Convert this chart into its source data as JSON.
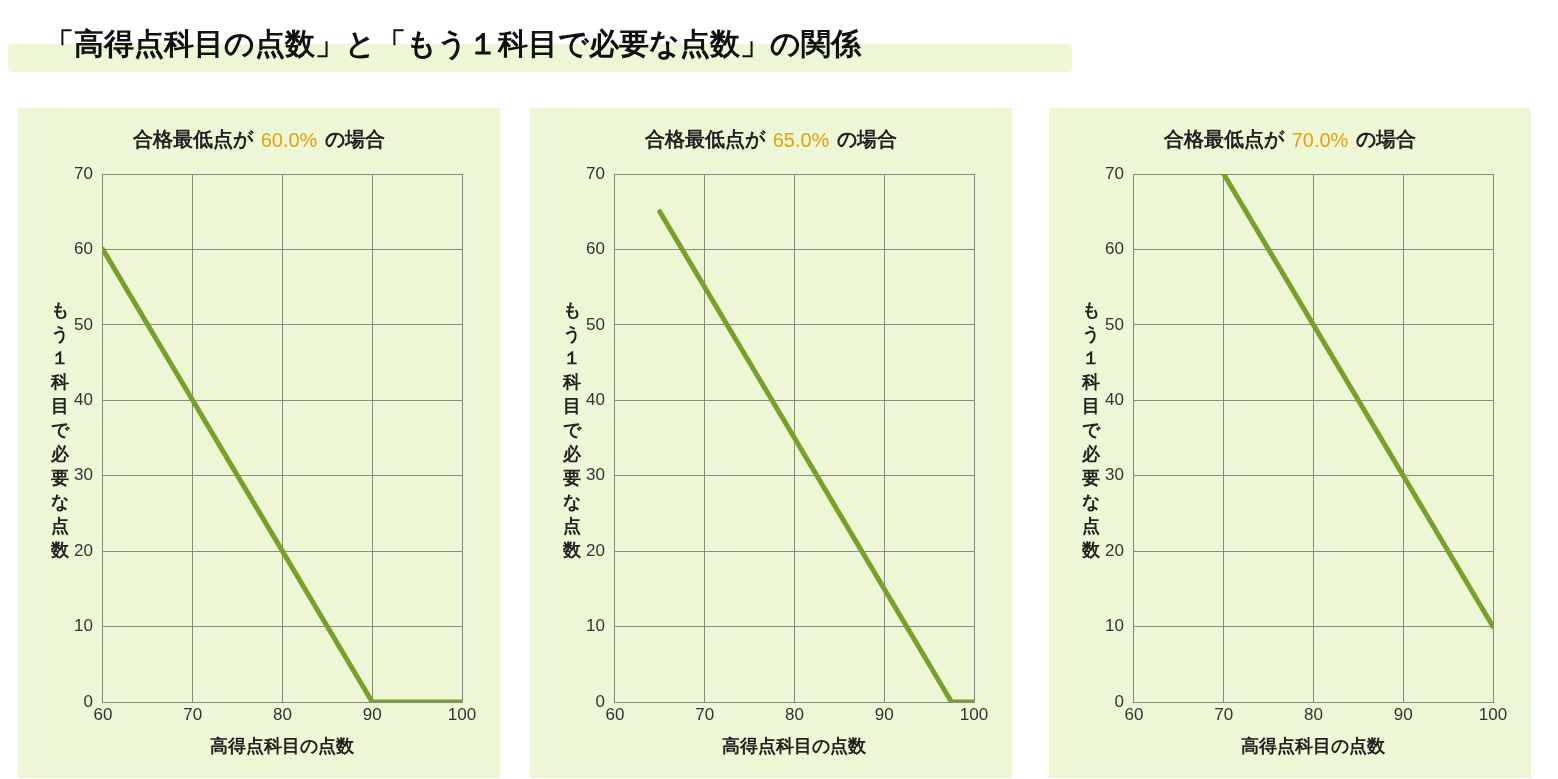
{
  "chart_data": [
    {
      "type": "line",
      "title": "合格最低点が 60.0% の場合",
      "xlabel": "高得点科目の点数",
      "ylabel": "もう１科目で必要な点数",
      "annotations": [
        "「高得点科目の点数」と「もう１科目で必要な点数」の関係"
      ],
      "series": [
        {
          "color": "#77a12a",
          "x": [
            60,
            90,
            100
          ],
          "values": [
            60,
            0,
            0
          ]
        }
      ],
      "xlim": [
        60,
        100
      ],
      "xticks": [
        60,
        70,
        80,
        90,
        100
      ],
      "ylim": [
        0,
        70
      ],
      "yticks": [
        0,
        10,
        20,
        30,
        40,
        50,
        60,
        70
      ],
      "grid": true,
      "legend": false,
      "marker": "none",
      "line_style": "solid"
    },
    {
      "type": "line",
      "title": "合格最低点が 65.0% の場合",
      "xlabel": "高得点科目の点数",
      "ylabel": "もう１科目で必要な点数",
      "series": [
        {
          "color": "#77a12a",
          "x": [
            65,
            97.5,
            100
          ],
          "values": [
            65,
            0,
            0
          ]
        }
      ],
      "xlim": [
        60,
        100
      ],
      "xticks": [
        60,
        70,
        80,
        90,
        100
      ],
      "ylim": [
        0,
        70
      ],
      "yticks": [
        0,
        10,
        20,
        30,
        40,
        50,
        60,
        70
      ],
      "grid": true,
      "legend": false,
      "marker": "none",
      "line_style": "solid"
    },
    {
      "type": "line",
      "title": "合格最低点が 70.0% の場合",
      "xlabel": "高得点科目の点数",
      "ylabel": "もう１科目で必要な点数",
      "series": [
        {
          "color": "#77a12a",
          "x": [
            70,
            100
          ],
          "values": [
            70,
            10
          ]
        }
      ],
      "xlim": [
        60,
        100
      ],
      "xticks": [
        60,
        70,
        80,
        90,
        100
      ],
      "ylim": [
        0,
        70
      ],
      "yticks": [
        0,
        10,
        20,
        30,
        40,
        50,
        60,
        70
      ],
      "grid": true,
      "legend": false,
      "marker": "none",
      "line_style": "solid"
    }
  ]
}
